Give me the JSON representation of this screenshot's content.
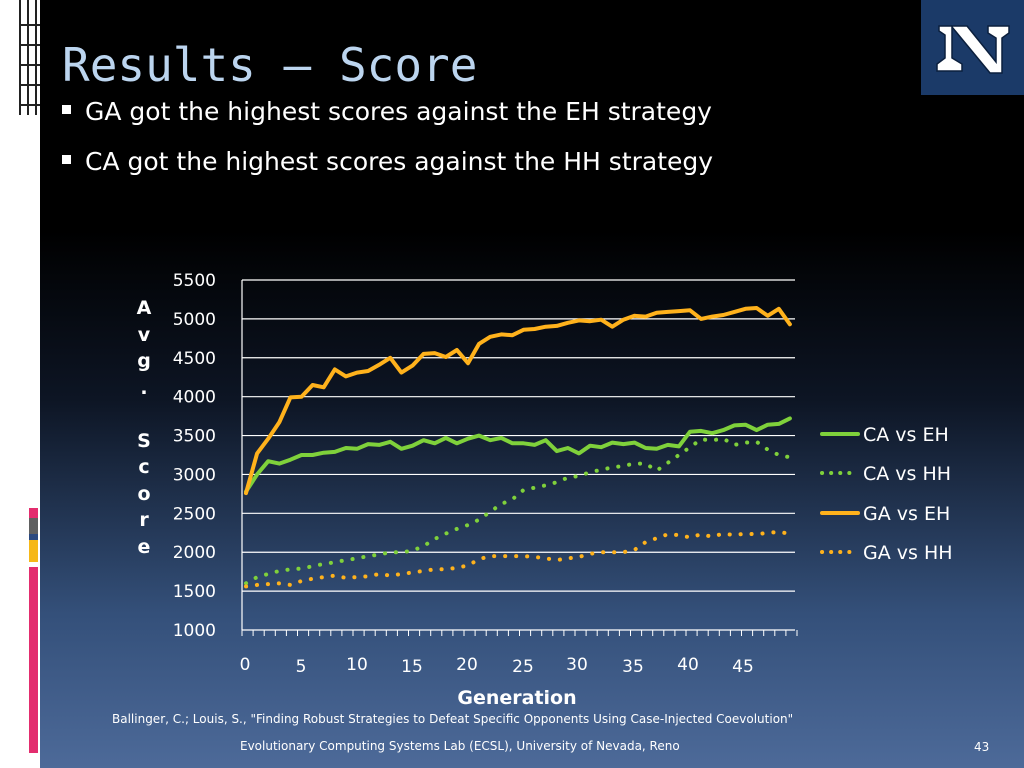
{
  "slide": {
    "title": "Results – Score",
    "bullets": [
      "GA got the highest scores against the EH strategy",
      "CA got the highest scores against the HH strategy"
    ],
    "citation": "Ballinger, C.; Louis, S., \"Finding Robust Strategies to Defeat Specific Opponents Using Case-Injected Coevolution\"",
    "footer": "Evolutionary Computing Systems Lab (ECSL), University of Nevada, Reno",
    "slide_number": "43",
    "logo_text": "N"
  },
  "colors": {
    "ca_green": "#7fd13b",
    "ga_orange": "#ffb21c",
    "title": "#bcd5ef",
    "logo_bg": "#1b3a68"
  },
  "chart_data": {
    "type": "line",
    "xlabel": "Generation",
    "ylabel": "Avg. Score",
    "ylim": [
      1000,
      5500
    ],
    "yticks": [
      "1000",
      "1500",
      "2000",
      "2500",
      "3000",
      "3500",
      "4000",
      "4500",
      "5000",
      "5500"
    ],
    "xticks": [
      "0",
      "5",
      "10",
      "15",
      "20",
      "25",
      "30",
      "35",
      "40",
      "45"
    ],
    "grid": true,
    "legend_position": "right",
    "series": [
      {
        "name": "CA vs EH",
        "style": "solid",
        "color": "#7fd13b",
        "values": [
          2780,
          3000,
          3170,
          3140,
          3190,
          3250,
          3250,
          3280,
          3290,
          3340,
          3330,
          3390,
          3380,
          3420,
          3330,
          3370,
          3440,
          3400,
          3470,
          3400,
          3460,
          3500,
          3440,
          3470,
          3400,
          3400,
          3380,
          3440,
          3300,
          3340,
          3270,
          3370,
          3350,
          3410,
          3390,
          3410,
          3340,
          3330,
          3380,
          3360,
          3550,
          3560,
          3530,
          3570,
          3630,
          3640,
          3570,
          3640,
          3650,
          3720
        ]
      },
      {
        "name": "CA vs HH",
        "style": "dotted",
        "color": "#7fd13b",
        "values": [
          1600,
          1680,
          1720,
          1760,
          1780,
          1790,
          1820,
          1850,
          1870,
          1900,
          1920,
          1950,
          1970,
          2000,
          2000,
          2020,
          2080,
          2170,
          2240,
          2300,
          2350,
          2420,
          2520,
          2620,
          2680,
          2800,
          2830,
          2860,
          2900,
          2960,
          2980,
          3030,
          3060,
          3090,
          3110,
          3140,
          3140,
          3050,
          3150,
          3250,
          3350,
          3450,
          3440,
          3460,
          3380,
          3410,
          3420,
          3320,
          3250,
          3220
        ]
      },
      {
        "name": "GA vs EH",
        "style": "solid",
        "color": "#ffb21c",
        "values": [
          2760,
          3270,
          3460,
          3670,
          3990,
          4000,
          4150,
          4120,
          4350,
          4260,
          4310,
          4330,
          4410,
          4500,
          4310,
          4400,
          4550,
          4560,
          4510,
          4600,
          4430,
          4680,
          4770,
          4800,
          4790,
          4860,
          4870,
          4900,
          4910,
          4950,
          4980,
          4970,
          4990,
          4900,
          4990,
          5040,
          5030,
          5080,
          5090,
          5100,
          5110,
          5000,
          5030,
          5050,
          5090,
          5130,
          5140,
          5040,
          5130,
          4930
        ]
      },
      {
        "name": "GA vs HH",
        "style": "dotted",
        "color": "#ffb21c",
        "values": [
          1560,
          1580,
          1590,
          1600,
          1580,
          1630,
          1660,
          1680,
          1700,
          1670,
          1680,
          1690,
          1720,
          1700,
          1720,
          1740,
          1760,
          1780,
          1780,
          1800,
          1830,
          1910,
          1950,
          1950,
          1950,
          1950,
          1940,
          1920,
          1900,
          1920,
          1940,
          1980,
          2000,
          2000,
          2000,
          2030,
          2130,
          2180,
          2230,
          2220,
          2190,
          2230,
          2200,
          2240,
          2220,
          2240,
          2230,
          2250,
          2260,
          2240
        ]
      }
    ]
  }
}
